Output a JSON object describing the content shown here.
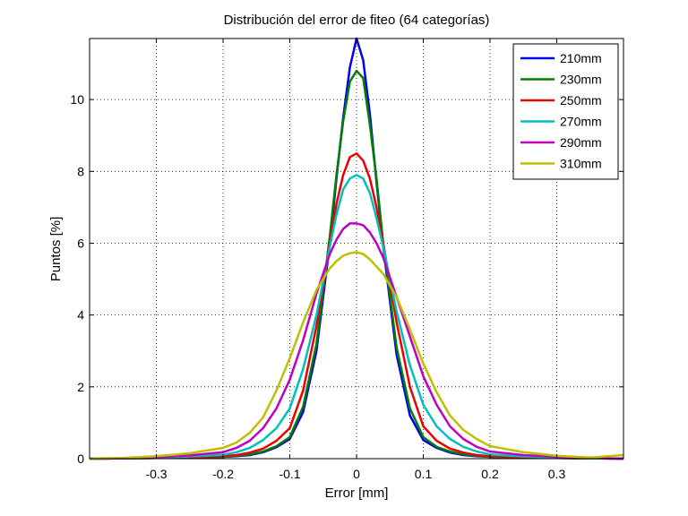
{
  "chart_data": {
    "type": "line",
    "title": "Distribución del error de fiteo (64 categorías)",
    "xlabel": "Error [mm]",
    "ylabel": "Puntos [%]",
    "xlim": [
      -0.4,
      0.4
    ],
    "ylim": [
      0,
      11.7
    ],
    "xticks": [
      -0.3,
      -0.2,
      -0.1,
      0,
      0.1,
      0.2,
      0.3
    ],
    "xtick_labels": [
      "-0.3",
      "-0.2",
      "-0.1",
      "0",
      "0.1",
      "0.2",
      "0.3"
    ],
    "yticks": [
      0,
      2,
      4,
      6,
      8,
      10
    ],
    "ytick_labels": [
      "0",
      "2",
      "4",
      "6",
      "8",
      "10"
    ],
    "grid": true,
    "legend_position": "top-right",
    "x": [
      -0.4,
      -0.35,
      -0.3,
      -0.25,
      -0.2,
      -0.18,
      -0.16,
      -0.14,
      -0.12,
      -0.1,
      -0.08,
      -0.06,
      -0.04,
      -0.03,
      -0.02,
      -0.01,
      0,
      0.01,
      0.02,
      0.03,
      0.04,
      0.06,
      0.08,
      0.1,
      0.12,
      0.14,
      0.16,
      0.18,
      0.2,
      0.25,
      0.3,
      0.35,
      0.4
    ],
    "series": [
      {
        "name": "210mm",
        "color": "#0000ee",
        "values": [
          0.0,
          0.01,
          0.02,
          0.03,
          0.05,
          0.07,
          0.1,
          0.18,
          0.32,
          0.55,
          1.3,
          3.0,
          6.0,
          7.8,
          9.5,
          10.9,
          11.7,
          11.1,
          9.6,
          7.7,
          5.9,
          2.9,
          1.2,
          0.52,
          0.3,
          0.17,
          0.1,
          0.07,
          0.05,
          0.03,
          0.02,
          0.01,
          0.0
        ]
      },
      {
        "name": "230mm",
        "color": "#007f00",
        "values": [
          0.0,
          0.01,
          0.02,
          0.03,
          0.05,
          0.08,
          0.12,
          0.2,
          0.35,
          0.6,
          1.45,
          3.2,
          6.2,
          7.9,
          9.4,
          10.5,
          10.8,
          10.6,
          9.3,
          7.8,
          6.0,
          3.1,
          1.4,
          0.6,
          0.33,
          0.2,
          0.12,
          0.08,
          0.05,
          0.03,
          0.02,
          0.01,
          0.0
        ]
      },
      {
        "name": "250mm",
        "color": "#ee0000",
        "values": [
          0.0,
          0.01,
          0.02,
          0.04,
          0.07,
          0.1,
          0.17,
          0.28,
          0.5,
          0.85,
          1.9,
          3.7,
          6.0,
          7.1,
          7.9,
          8.4,
          8.5,
          8.3,
          7.8,
          7.0,
          6.0,
          3.8,
          2.0,
          0.9,
          0.5,
          0.28,
          0.17,
          0.1,
          0.07,
          0.04,
          0.02,
          0.01,
          0.0
        ]
      },
      {
        "name": "270mm",
        "color": "#00bfbf",
        "values": [
          0.0,
          0.01,
          0.03,
          0.06,
          0.11,
          0.18,
          0.3,
          0.52,
          0.85,
          1.4,
          2.5,
          4.0,
          5.9,
          6.8,
          7.5,
          7.8,
          7.9,
          7.8,
          7.4,
          6.7,
          5.9,
          4.1,
          2.6,
          1.5,
          0.9,
          0.55,
          0.33,
          0.2,
          0.12,
          0.06,
          0.03,
          0.01,
          0.0
        ]
      },
      {
        "name": "290mm",
        "color": "#bf00bf",
        "values": [
          0.0,
          0.01,
          0.04,
          0.09,
          0.18,
          0.3,
          0.5,
          0.85,
          1.4,
          2.2,
          3.3,
          4.6,
          5.7,
          6.1,
          6.4,
          6.55,
          6.55,
          6.5,
          6.3,
          6.0,
          5.6,
          4.5,
          3.4,
          2.3,
          1.5,
          0.9,
          0.55,
          0.33,
          0.2,
          0.1,
          0.05,
          0.02,
          0.0
        ]
      },
      {
        "name": "310mm",
        "color": "#bfbf00",
        "values": [
          0.0,
          0.02,
          0.07,
          0.15,
          0.3,
          0.45,
          0.72,
          1.15,
          1.9,
          2.8,
          3.8,
          4.7,
          5.3,
          5.5,
          5.65,
          5.72,
          5.75,
          5.7,
          5.55,
          5.35,
          5.15,
          4.5,
          3.6,
          2.65,
          1.85,
          1.2,
          0.8,
          0.55,
          0.35,
          0.18,
          0.08,
          0.03,
          0.1
        ]
      }
    ]
  }
}
